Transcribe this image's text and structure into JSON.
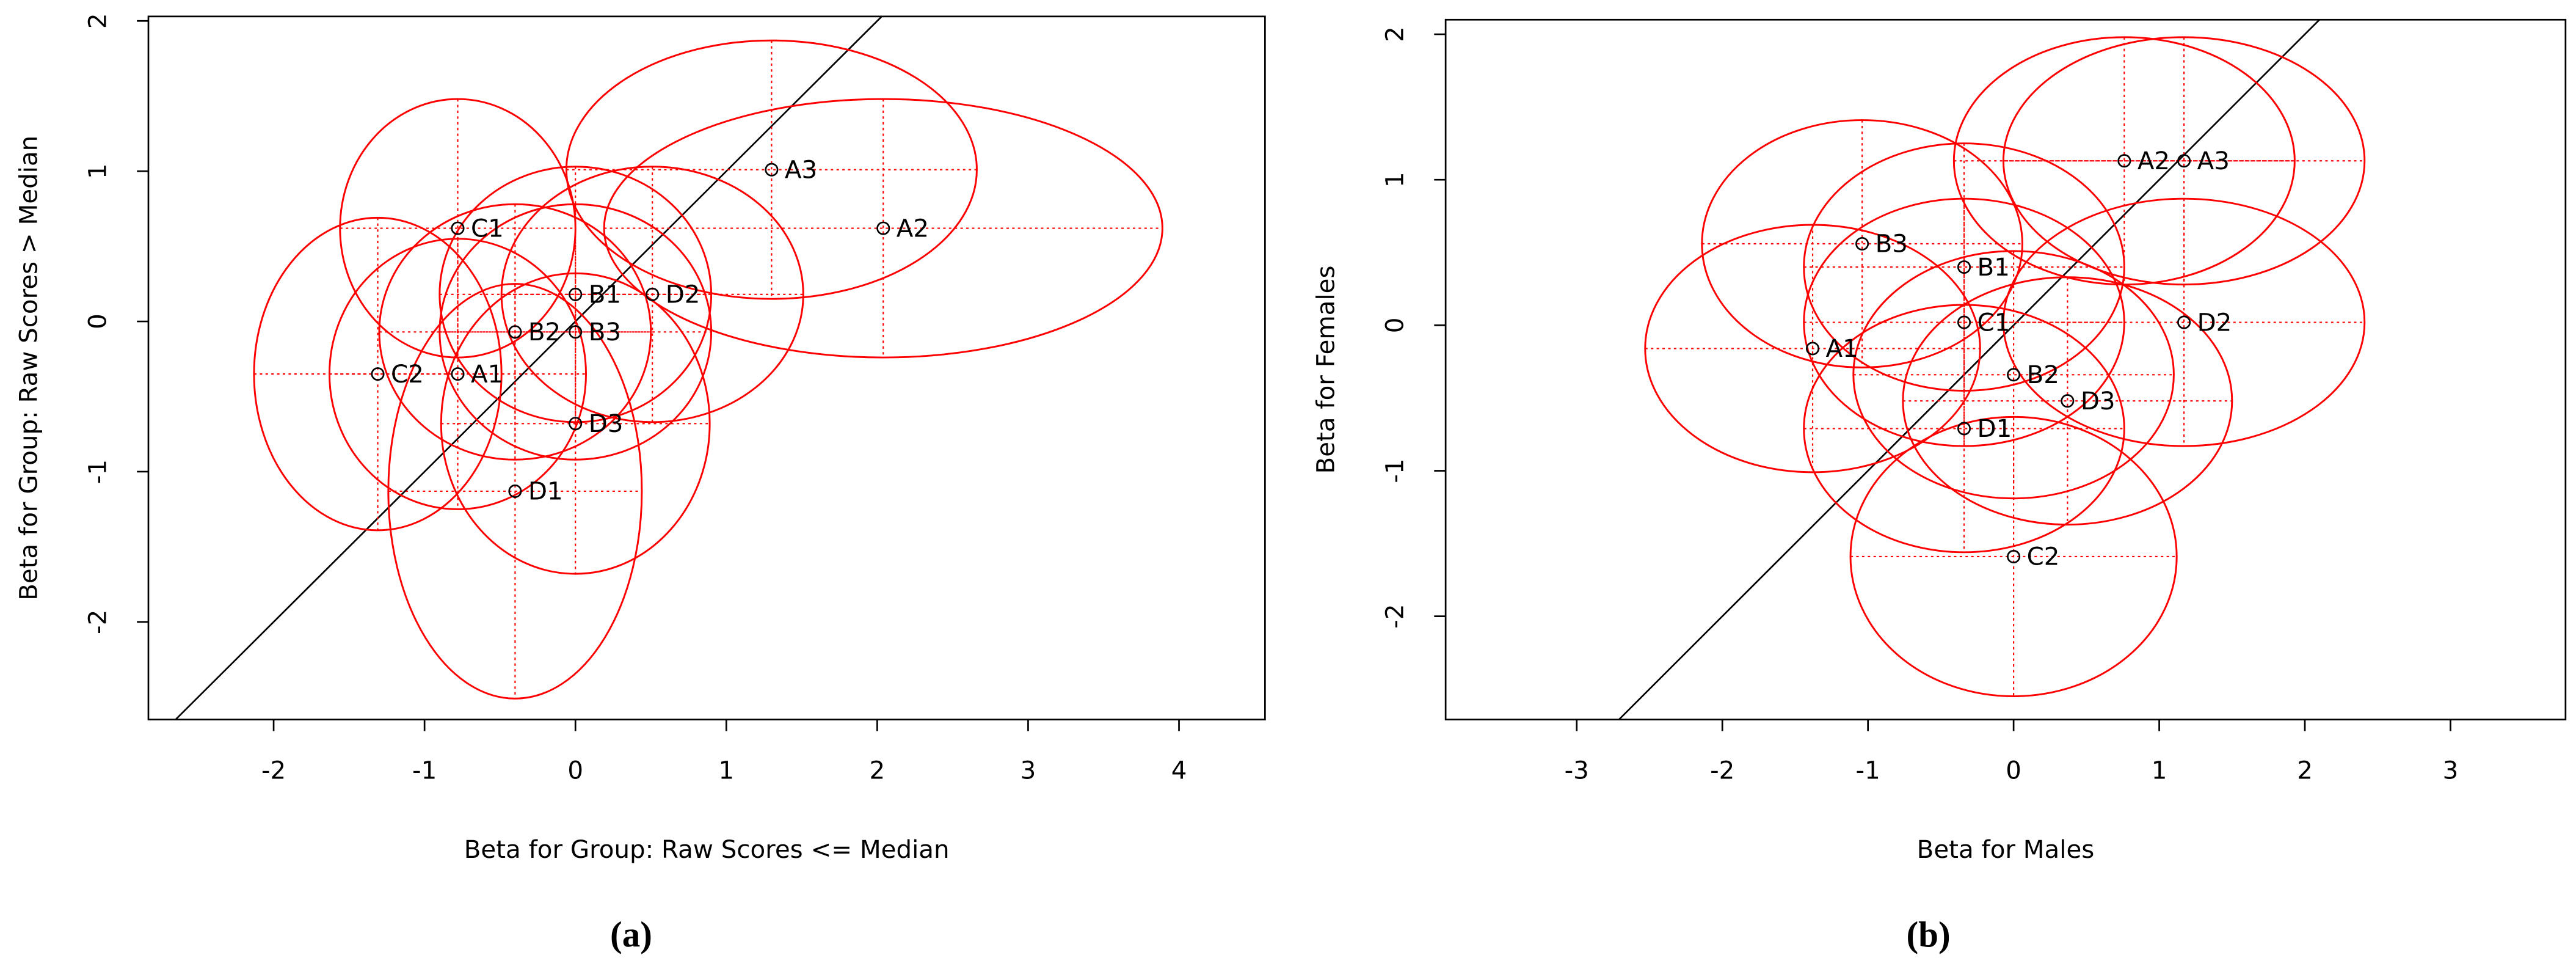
{
  "chart_data": [
    {
      "type": "scatter",
      "xlabel": "Beta for Group: Raw Scores <= Median",
      "ylabel": "Beta for Group: Raw Scores > Median",
      "caption": "(a)",
      "labels": [
        "A3",
        "A2",
        "C1",
        "B1",
        "D2",
        "B2",
        "B3",
        "C2",
        "A1",
        "D3",
        "D1"
      ],
      "x": [
        1.3,
        2.04,
        -0.78,
        0,
        0.51,
        -0.4,
        0,
        -1.31,
        -0.78,
        0,
        -0.4
      ],
      "y": [
        1.01,
        0.62,
        0.62,
        0.18,
        0.18,
        -0.07,
        -0.07,
        -0.35,
        -0.35,
        -0.68,
        -1.13
      ],
      "x_err": [
        1.36,
        1.85,
        0.78,
        0.9,
        1.0,
        0.9,
        0.9,
        0.82,
        0.85,
        0.89,
        0.84
      ],
      "y_err": [
        0.86,
        0.86,
        0.86,
        0.85,
        0.85,
        0.85,
        0.85,
        1.04,
        0.9,
        1.0,
        1.38
      ],
      "color": "#ff0000",
      "xlim": [
        -2.83,
        4.57
      ],
      "ylim": [
        -2.65,
        2.03
      ],
      "xticks": [
        -2,
        -1,
        0,
        1,
        2,
        3,
        4
      ],
      "yticks": [
        -2,
        -1,
        0,
        1,
        2
      ]
    },
    {
      "type": "scatter",
      "xlabel": "Beta for Males",
      "ylabel": "Beta for Females",
      "caption": "(b)",
      "labels": [
        "A2",
        "A3",
        "B3",
        "B1",
        "C1",
        "D2",
        "A1",
        "B2",
        "D3",
        "D1",
        "C2"
      ],
      "x": [
        0.76,
        1.17,
        -1.04,
        -0.34,
        -0.34,
        1.17,
        -1.38,
        0,
        0.37,
        -0.34,
        0
      ],
      "y": [
        1.13,
        1.13,
        0.56,
        0.4,
        0.02,
        0.02,
        -0.16,
        -0.34,
        -0.52,
        -0.71,
        -1.59
      ],
      "x_err": [
        1.17,
        1.24,
        1.1,
        1.1,
        1.1,
        1.24,
        1.15,
        1.1,
        1.13,
        1.1,
        1.12
      ],
      "y_err": [
        0.85,
        0.85,
        0.85,
        0.85,
        0.85,
        0.85,
        0.85,
        0.85,
        0.85,
        0.85,
        0.96
      ],
      "color": "#ff0000",
      "xlim": [
        -3.9,
        3.79
      ],
      "ylim": [
        -2.71,
        2.1
      ],
      "xticks": [
        -3,
        -2,
        -1,
        0,
        1,
        2,
        3
      ],
      "yticks": [
        -2,
        -1,
        0,
        1,
        2
      ]
    }
  ]
}
